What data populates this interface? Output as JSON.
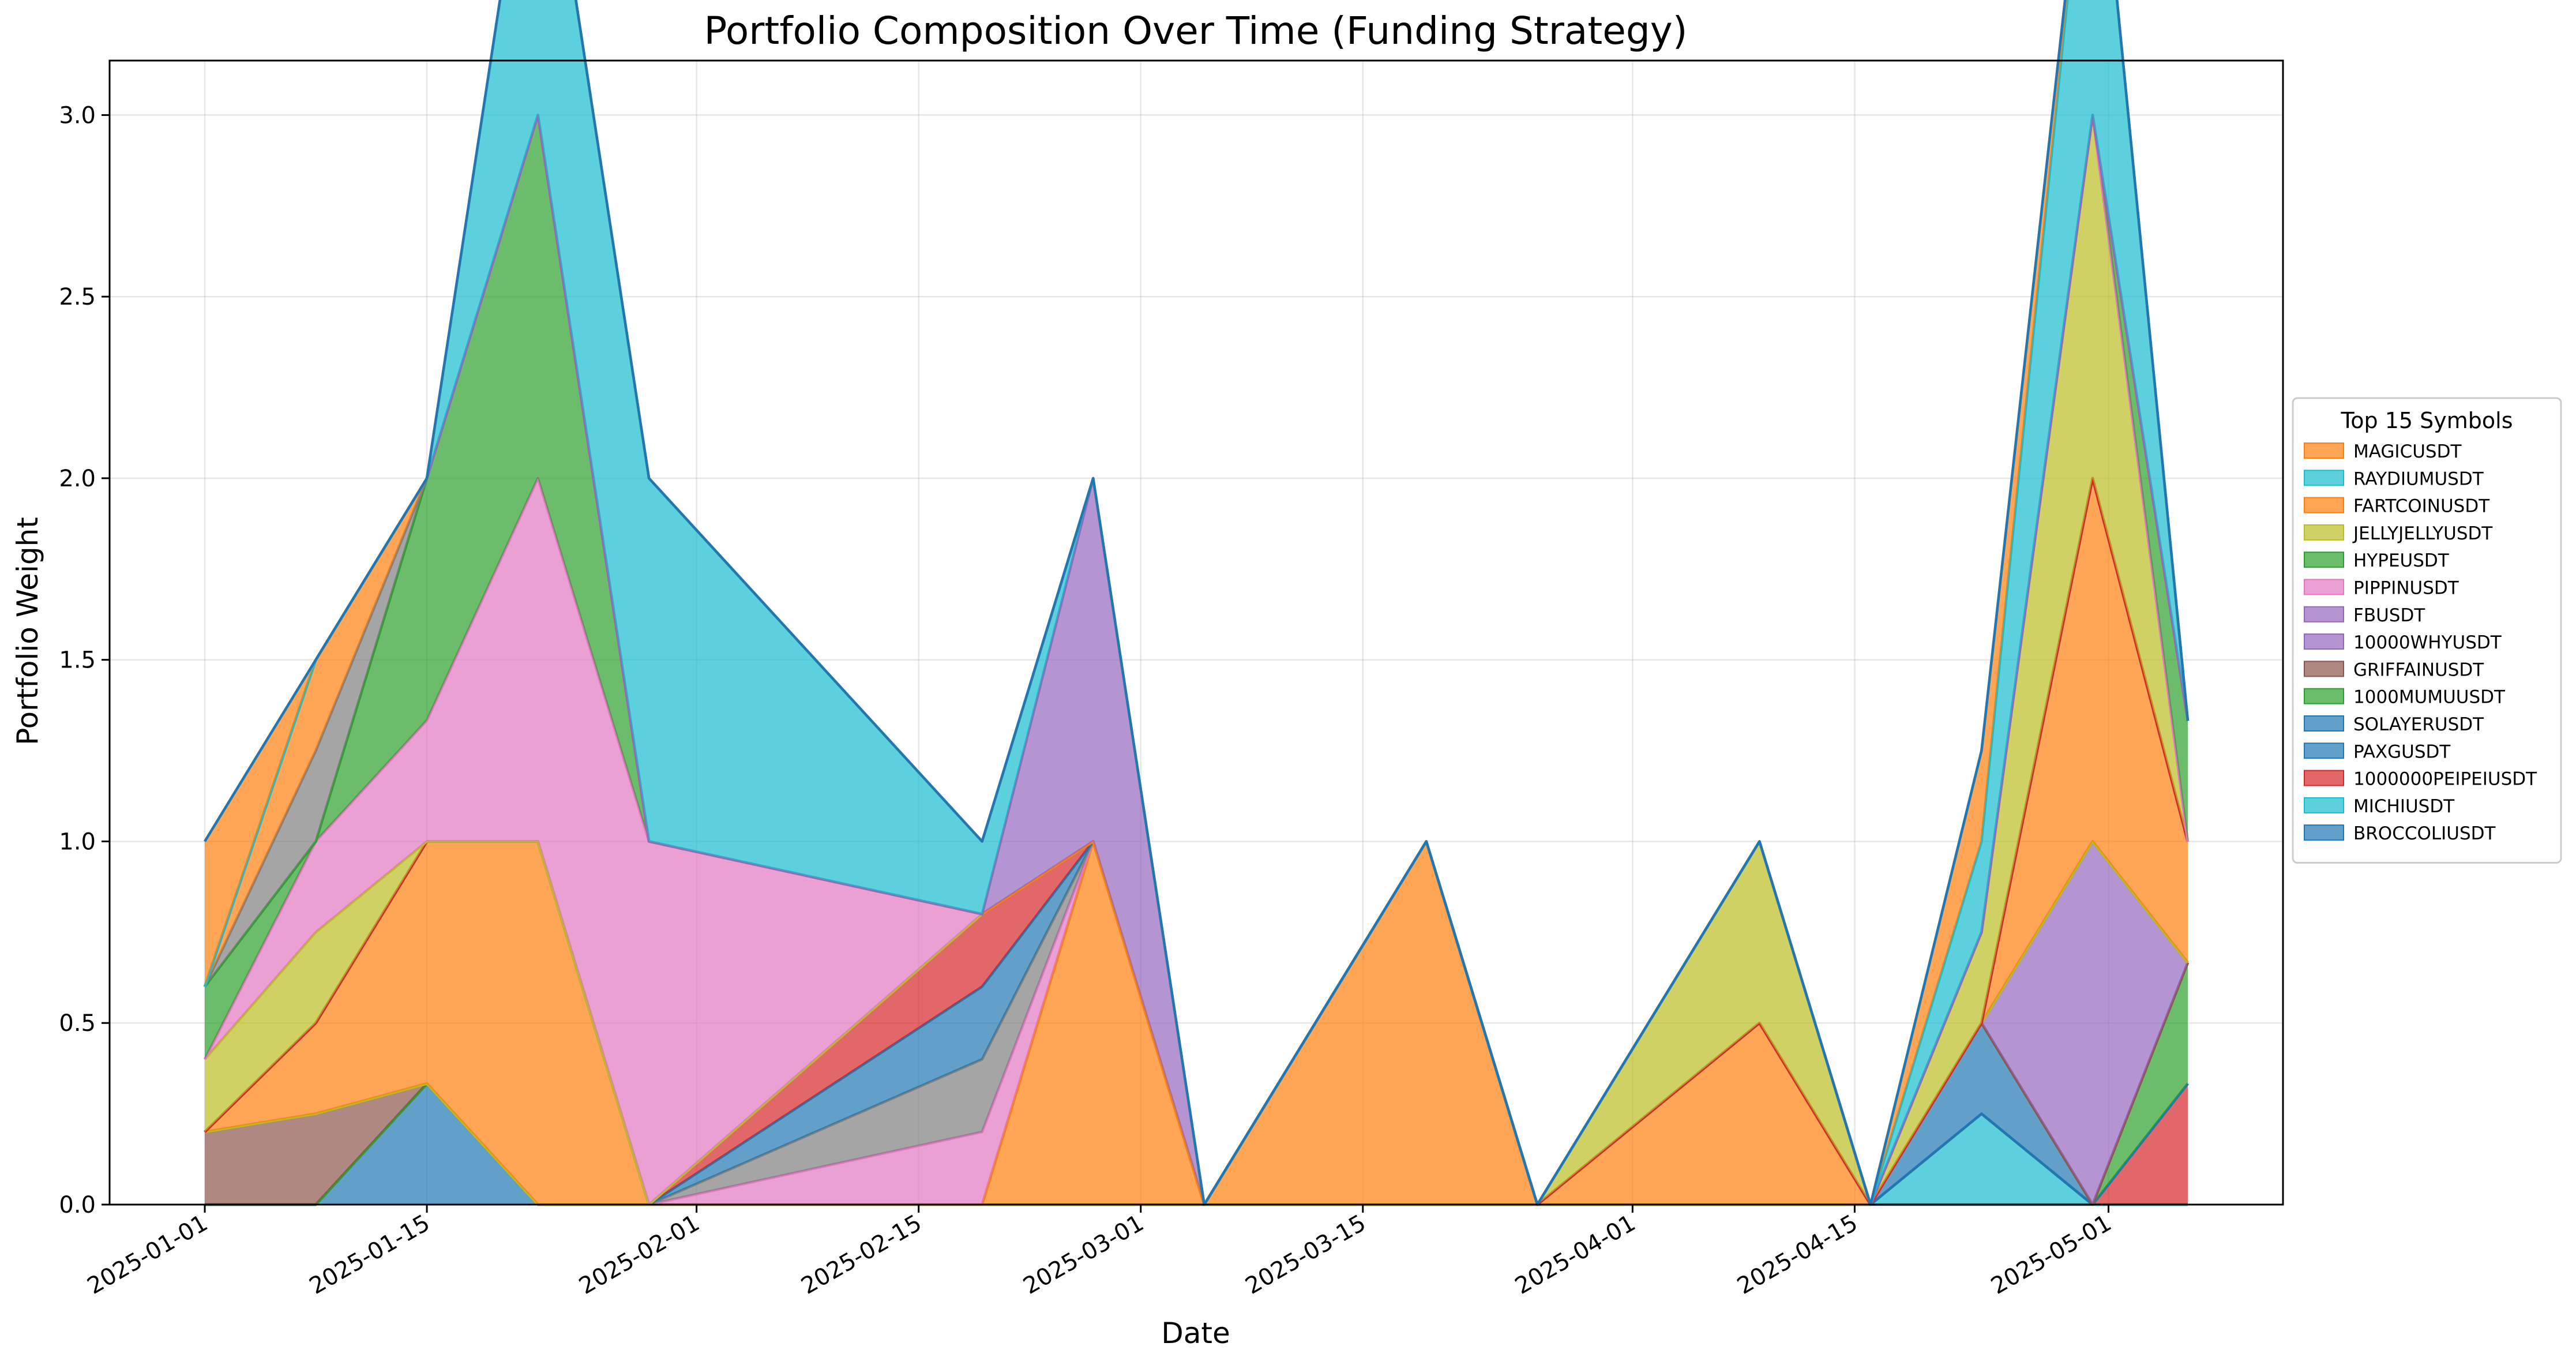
{
  "chart_data": {
    "type": "area",
    "title": "Portfolio Composition Over Time (Funding Strategy)",
    "xlabel": "Date",
    "ylabel": "Portfolio Weight",
    "grid": true,
    "legend_title": "Top 15 Symbols",
    "legend_position": "center-right (outside)",
    "xlim": [
      "2024-12-26",
      "2025-05-12"
    ],
    "ylim": [
      0,
      3.15
    ],
    "x_ticks": [
      "2025-01-01",
      "2025-01-15",
      "2025-02-01",
      "2025-02-15",
      "2025-03-01",
      "2025-03-15",
      "2025-04-01",
      "2025-04-15",
      "2025-05-01"
    ],
    "y_ticks": [
      "0.0",
      "0.5",
      "1.0",
      "1.5",
      "2.0",
      "2.5",
      "3.0"
    ],
    "x": [
      "2025-01-01",
      "2025-01-08",
      "2025-01-15",
      "2025-01-22",
      "2025-01-29",
      "2025-02-19",
      "2025-02-26",
      "2025-03-05",
      "2025-03-19",
      "2025-03-26",
      "2025-04-09",
      "2025-04-16",
      "2025-04-23",
      "2025-04-30",
      "2025-05-06"
    ],
    "series": [
      {
        "name": "BROCCOLIUSDT",
        "color": "#1f77b4",
        "values": [
          0,
          0,
          0.333,
          0,
          0,
          0,
          0,
          0,
          0,
          0,
          0,
          0,
          0,
          0,
          0
        ]
      },
      {
        "name": "MICHIUSDT",
        "color": "#17becf",
        "values": [
          0,
          0,
          0,
          0,
          0,
          0,
          0,
          0,
          0,
          0,
          0,
          0,
          0.25,
          0,
          0
        ]
      },
      {
        "name": "1000000PEIPEIUSDT",
        "color": "#d62728",
        "values": [
          0,
          0,
          0,
          0,
          0,
          0,
          0,
          0,
          0,
          0,
          0,
          0,
          0,
          0,
          0.333
        ]
      },
      {
        "name": "PAXGUSDT",
        "color": "#1f77b4",
        "values": [
          0,
          0,
          0,
          0,
          0,
          0,
          0,
          0,
          0,
          0,
          0,
          0,
          0,
          0,
          0
        ]
      },
      {
        "name": "SOLAYERUSDT",
        "color": "#1f77b4",
        "values": [
          0,
          0,
          0,
          0,
          0,
          0,
          0,
          0,
          0,
          0,
          0,
          0,
          0.25,
          0,
          0
        ]
      },
      {
        "name": "1000MUMUUSDT",
        "color": "#2ca02c",
        "values": [
          0,
          0,
          0,
          0,
          0,
          0,
          0,
          0,
          0,
          0,
          0,
          0,
          0,
          0,
          0.333
        ]
      },
      {
        "name": "GRIFFAINUSDT",
        "color": "#8c564b",
        "values": [
          0.2,
          0.25,
          0,
          0,
          0,
          0,
          0,
          0,
          0,
          0,
          0,
          0,
          0,
          0,
          0
        ]
      },
      {
        "name": "10000WHYUSDT",
        "color": "#9467bd",
        "values": [
          0,
          0,
          0,
          0,
          0,
          0,
          0,
          0,
          0,
          0,
          0,
          0,
          0,
          1.0,
          0
        ]
      },
      {
        "name": "FBUSDT",
        "color": "#9467bd",
        "values": [
          0,
          0,
          0,
          0,
          0,
          0,
          0,
          0,
          0,
          0,
          0,
          0,
          0,
          0,
          0
        ]
      },
      {
        "name": "PIPPINUSDT",
        "color": "#e377c2",
        "values": [
          0,
          0,
          0,
          0,
          0,
          0,
          0,
          0,
          0,
          0,
          0,
          0,
          0,
          0,
          0
        ]
      },
      {
        "name": "HYPEUSDT",
        "color": "#2ca02c",
        "values": [
          0,
          0,
          0,
          0,
          0,
          0,
          0,
          0,
          0,
          0,
          0,
          0,
          0,
          0,
          0
        ]
      },
      {
        "name": "JELLYJELLYUSDT",
        "color": "#bcbd22",
        "values": [
          0,
          0,
          0,
          0,
          0,
          0,
          0,
          0,
          0,
          0,
          0,
          0,
          0,
          0,
          0
        ]
      },
      {
        "name": "FARTCOINUSDT",
        "color": "#ff7f0e",
        "values": [
          0,
          0.25,
          0.667,
          1.0,
          0,
          0,
          1.0,
          0,
          1.0,
          0,
          0.5,
          0,
          0,
          1.0,
          0.333
        ]
      },
      {
        "name": "RAYDIUMUSDT",
        "color": "#17becf",
        "values": [
          0,
          0,
          0,
          0,
          0,
          0,
          0,
          0,
          0,
          0,
          0,
          0,
          0,
          0,
          0
        ]
      },
      {
        "name": "MAGICUSDT",
        "color": "#ff7f0e",
        "values": [
          0,
          0,
          0,
          0,
          0,
          0,
          0,
          0,
          0,
          0,
          0,
          0,
          0,
          0,
          0
        ]
      },
      {
        "name": "GRIFFAINUSDT",
        "color": "#e377c2",
        "values": [
          0,
          0,
          0,
          0,
          0,
          0.2,
          0,
          0,
          0,
          0,
          0,
          0,
          0,
          0,
          0
        ]
      },
      {
        "name": "",
        "color": "#7f7f7f",
        "values": [
          0,
          0,
          0,
          0,
          0,
          0.2,
          0,
          0,
          0,
          0,
          0,
          0,
          0,
          0,
          0
        ]
      },
      {
        "name": "",
        "color": "#1f77b4",
        "values": [
          0,
          0,
          0,
          0,
          0,
          0.2,
          0,
          0,
          0,
          0,
          0,
          0,
          0,
          0,
          0
        ]
      },
      {
        "name": "",
        "color": "#d62728",
        "values": [
          0,
          0,
          0,
          0,
          0,
          0.2,
          0,
          0,
          0,
          0,
          0,
          0,
          0,
          0,
          0
        ]
      },
      {
        "name": "",
        "color": "#bcbd22",
        "values": [
          0.2,
          0.25,
          0,
          0,
          0,
          0,
          0,
          0,
          0,
          0,
          0.5,
          0,
          0.25,
          1.0,
          0
        ]
      },
      {
        "name": "",
        "color": "#e377c2",
        "values": [
          0,
          0.25,
          0.333,
          1.0,
          1.0,
          0,
          0,
          0,
          0,
          0,
          0,
          0,
          0,
          0,
          0
        ]
      },
      {
        "name": "",
        "color": "#2ca02c",
        "values": [
          0.2,
          0,
          0.667,
          1.0,
          0,
          0,
          0,
          0,
          0,
          0,
          0,
          0,
          0,
          0,
          0.333
        ]
      },
      {
        "name": "",
        "color": "#7f7f7f",
        "values": [
          0,
          0.25,
          0,
          0,
          0,
          0,
          0,
          0,
          0,
          0,
          0,
          0,
          0,
          0,
          0
        ]
      },
      {
        "name": "",
        "color": "#ff7f0e",
        "values": [
          0,
          0.25,
          0,
          0,
          0,
          0,
          0,
          0,
          0,
          0,
          0,
          0,
          0,
          0,
          0
        ]
      },
      {
        "name": "",
        "color": "#9467bd",
        "values": [
          0,
          0,
          0,
          0,
          0,
          0,
          1.0,
          0,
          0,
          0,
          0,
          0,
          0,
          0,
          0
        ]
      },
      {
        "name": "",
        "color": "#17becf",
        "values": [
          0,
          0,
          0,
          1.0,
          1.0,
          0.2,
          0,
          0,
          0,
          0,
          0,
          0,
          0.25,
          1.0,
          0
        ]
      },
      {
        "name": "",
        "color": "#ff7f0e",
        "values": [
          0.4,
          0,
          0,
          0,
          0,
          0,
          0,
          0,
          0,
          0,
          0,
          0,
          0.25,
          0,
          0
        ]
      },
      {
        "name": "",
        "color": "#1f77b4",
        "values": [
          0,
          0,
          0,
          0,
          0,
          0,
          0,
          0,
          0,
          0,
          0,
          0,
          0,
          0,
          0
        ]
      }
    ],
    "legend": [
      {
        "name": "MAGICUSDT",
        "color": "#ff7f0e"
      },
      {
        "name": "RAYDIUMUSDT",
        "color": "#17becf"
      },
      {
        "name": "FARTCOINUSDT",
        "color": "#ff7f0e"
      },
      {
        "name": "JELLYJELLYUSDT",
        "color": "#bcbd22"
      },
      {
        "name": "HYPEUSDT",
        "color": "#2ca02c"
      },
      {
        "name": "PIPPINUSDT",
        "color": "#e377c2"
      },
      {
        "name": "FBUSDT",
        "color": "#9467bd"
      },
      {
        "name": "10000WHYUSDT",
        "color": "#9467bd"
      },
      {
        "name": "GRIFFAINUSDT",
        "color": "#8c564b"
      },
      {
        "name": "1000MUMUUSDT",
        "color": "#2ca02c"
      },
      {
        "name": "SOLAYERUSDT",
        "color": "#1f77b4"
      },
      {
        "name": "PAXGUSDT",
        "color": "#1f77b4"
      },
      {
        "name": "1000000PEIPEIUSDT",
        "color": "#d62728"
      },
      {
        "name": "MICHIUSDT",
        "color": "#17becf"
      },
      {
        "name": "BROCCOLIUSDT",
        "color": "#1f77b4"
      }
    ]
  }
}
